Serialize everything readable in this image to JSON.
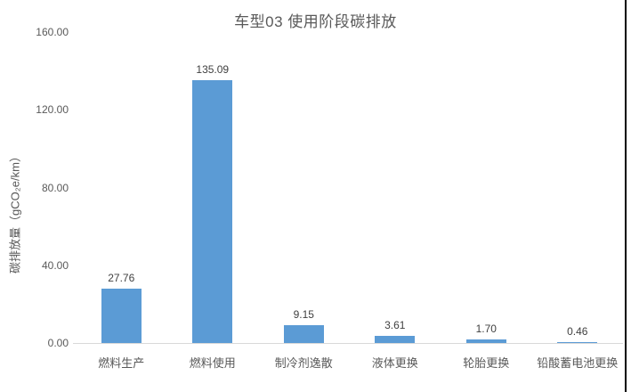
{
  "page": {
    "background_color": "#ffffff",
    "right_border_color": "#000000"
  },
  "chart_data": {
    "type": "bar",
    "title": "车型03 使用阶段碳排放",
    "ylabel": "碳排放量（gCO₂e/km）",
    "xlabel": "",
    "categories": [
      "燃料生产",
      "燃料使用",
      "制冷剂逸散",
      "液体更换",
      "轮胎更换",
      "铅酸蓄电池更换"
    ],
    "values": [
      27.76,
      135.09,
      9.15,
      3.61,
      1.7,
      0.46
    ],
    "value_labels": [
      "27.76",
      "135.09",
      "9.15",
      "3.61",
      "1.70",
      "0.46"
    ],
    "ylim": [
      0,
      160
    ],
    "yticks": [
      {
        "value": 0,
        "label": "0.00"
      },
      {
        "value": 40,
        "label": "40.00"
      },
      {
        "value": 80,
        "label": "80.00"
      },
      {
        "value": 120,
        "label": "120.00"
      },
      {
        "value": 160,
        "label": "160.00"
      }
    ],
    "grid": false,
    "legend": false,
    "bar_color": "#5B9BD5",
    "axis_line_color": "#D9D9D9",
    "title_color": "#595959",
    "tick_label_color": "#595959",
    "value_label_color": "#404040",
    "category_label_color": "#595959"
  }
}
